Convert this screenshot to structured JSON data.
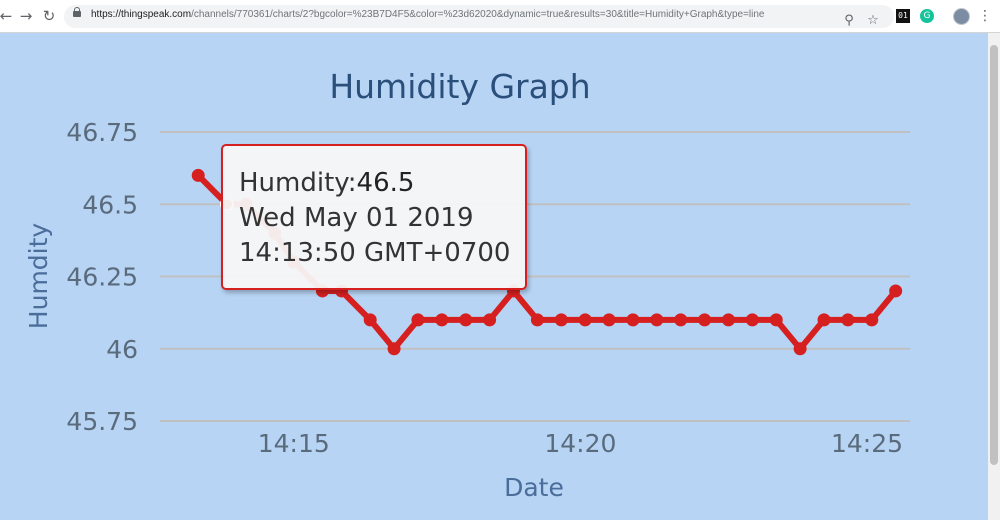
{
  "browser": {
    "url_host": "https://thingspeak.com",
    "url_rest": "/channels/770361/charts/2?bgcolor=%23B7D4F5&color=%23d62020&dynamic=true&results=30&title=Humidity+Graph&type=line",
    "ext_01_label": "01",
    "ext_g_label": "G"
  },
  "tooltip": {
    "series_label": "Humdity:",
    "value": "46.5",
    "date_line": "Wed May 01 2019",
    "time_line": "14:13:50 GMT+0700"
  },
  "colors": {
    "background": "#b7d4f5",
    "line": "#d62020",
    "title": "#2a4f7a",
    "axis_text": "#5a6b7c",
    "grid": "#c0c0c0"
  },
  "chart_data": {
    "type": "line",
    "title": "Humidity Graph",
    "xlabel": "Date",
    "ylabel": "Humdity",
    "ylim": [
      45.75,
      46.75
    ],
    "yticks": [
      "46.75",
      "46.5",
      "46.25",
      "46",
      "45.75"
    ],
    "xticks": [
      "14:15",
      "14:20",
      "14:25"
    ],
    "grid": true,
    "series": [
      {
        "name": "Humdity",
        "color": "#d62020",
        "x": [
          "14:13:20",
          "14:13:50",
          "14:14:10",
          "14:14:40",
          "14:15:00",
          "14:15:30",
          "14:15:50",
          "14:16:20",
          "14:16:45",
          "14:17:10",
          "14:17:35",
          "14:18:00",
          "14:18:25",
          "14:18:50",
          "14:19:15",
          "14:19:40",
          "14:20:05",
          "14:20:30",
          "14:20:55",
          "14:21:20",
          "14:21:45",
          "14:22:10",
          "14:22:35",
          "14:23:00",
          "14:23:25",
          "14:23:50",
          "14:24:15",
          "14:24:40",
          "14:25:05",
          "14:25:30"
        ],
        "values": [
          46.6,
          46.5,
          46.5,
          46.4,
          46.3,
          46.2,
          46.2,
          46.1,
          46.0,
          46.1,
          46.1,
          46.1,
          46.1,
          46.2,
          46.1,
          46.1,
          46.1,
          46.1,
          46.1,
          46.1,
          46.1,
          46.1,
          46.1,
          46.1,
          46.1,
          46.0,
          46.1,
          46.1,
          46.1,
          46.2
        ]
      }
    ],
    "highlighted_point_index": 1
  }
}
